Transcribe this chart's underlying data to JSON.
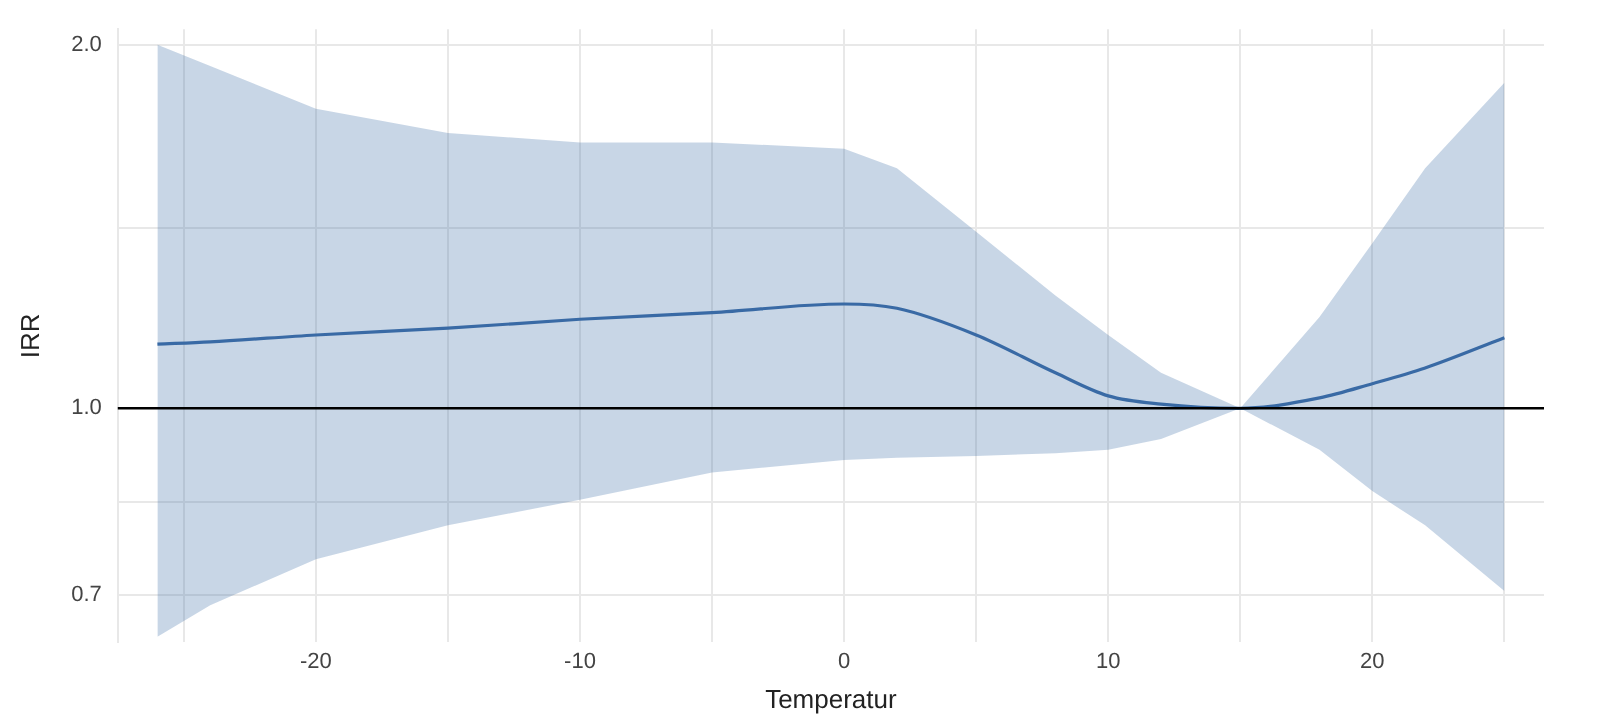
{
  "chart_data": {
    "type": "line",
    "xlabel": "Temperatur",
    "ylabel": "IRR",
    "log": "y",
    "grid": true,
    "legend": false,
    "marker": "none",
    "line_style": "solid",
    "xlim": [
      -27.5,
      26.5
    ],
    "xticks": [
      {
        "value": -25,
        "label": null
      },
      -20,
      {
        "value": -15,
        "label": null
      },
      -10,
      {
        "value": -5,
        "label": null
      },
      0,
      {
        "value": 5,
        "label": null
      },
      10,
      {
        "value": 15,
        "label": null
      },
      20,
      {
        "value": 25,
        "label": null
      }
    ],
    "ylim": [
      0.64,
      2.06
    ],
    "yticks": [
      0.7,
      {
        "value": 0.837,
        "label": null
      },
      {
        "value": 1,
        "label": "1.0"
      },
      {
        "value": 1.41,
        "label": null
      },
      {
        "value": 2,
        "label": "2.0"
      }
    ],
    "ref_lines": [
      {
        "axis": "y",
        "value": 1.0,
        "color": "#000000"
      }
    ],
    "series": [
      {
        "color": "#3a6aa5",
        "x": [
          -26,
          -24,
          -20,
          -15,
          -10,
          -5,
          0,
          2,
          5,
          8,
          10,
          12,
          15,
          18,
          20,
          22,
          25
        ],
        "values": [
          1.13,
          1.135,
          1.15,
          1.165,
          1.185,
          1.2,
          1.22,
          1.21,
          1.15,
          1.07,
          1.024,
          1.008,
          1.0,
          1.02,
          1.048,
          1.08,
          1.144
        ],
        "lower": [
          0.647,
          0.687,
          0.75,
          0.8,
          0.84,
          0.885,
          0.906,
          0.91,
          0.913,
          0.918,
          0.924,
          0.943,
          1.0,
          0.924,
          0.854,
          0.8,
          0.706
        ],
        "upper": [
          2.0,
          1.92,
          1.77,
          1.69,
          1.66,
          1.66,
          1.64,
          1.58,
          1.4,
          1.24,
          1.15,
          1.07,
          1.0,
          1.19,
          1.37,
          1.58,
          1.86
        ]
      }
    ]
  }
}
